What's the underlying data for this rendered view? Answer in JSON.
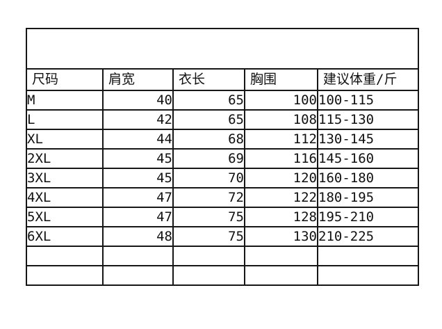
{
  "page": {
    "background_color": "#ffffff",
    "table_border_color": "#161616"
  },
  "size_chart": {
    "banner_text": "",
    "columns": [
      {
        "label": "尺码"
      },
      {
        "label": "肩宽"
      },
      {
        "label": "衣长"
      },
      {
        "label": "胸围"
      },
      {
        "label": "建议体重/斤"
      }
    ],
    "rows": [
      {
        "size": "M",
        "shoulder": "40",
        "length": "65",
        "chest": "100",
        "weight": "100-115"
      },
      {
        "size": "L",
        "shoulder": "42",
        "length": "65",
        "chest": "108",
        "weight": "115-130"
      },
      {
        "size": "XL",
        "shoulder": "44",
        "length": "68",
        "chest": "112",
        "weight": "130-145"
      },
      {
        "size": "2XL",
        "shoulder": "45",
        "length": "69",
        "chest": "116",
        "weight": "145-160"
      },
      {
        "size": "3XL",
        "shoulder": "45",
        "length": "70",
        "chest": "120",
        "weight": "160-180"
      },
      {
        "size": "4XL",
        "shoulder": "47",
        "length": "72",
        "chest": "122",
        "weight": "180-195"
      },
      {
        "size": "5XL",
        "shoulder": "47",
        "length": "75",
        "chest": "128",
        "weight": "195-210"
      },
      {
        "size": "6XL",
        "shoulder": "48",
        "length": "75",
        "chest": "130",
        "weight": "210-225"
      },
      {
        "size": "",
        "shoulder": "",
        "length": "",
        "chest": "",
        "weight": ""
      },
      {
        "size": "",
        "shoulder": "",
        "length": "",
        "chest": "",
        "weight": ""
      }
    ]
  },
  "chart_data": {
    "type": "table",
    "title": "",
    "columns": [
      "尺码",
      "肩宽",
      "衣长",
      "胸围",
      "建议体重/斤"
    ],
    "rows": [
      [
        "M",
        40,
        65,
        100,
        "100-115"
      ],
      [
        "L",
        42,
        65,
        108,
        "115-130"
      ],
      [
        "XL",
        44,
        68,
        112,
        "130-145"
      ],
      [
        "2XL",
        45,
        69,
        116,
        "145-160"
      ],
      [
        "3XL",
        45,
        70,
        120,
        "160-180"
      ],
      [
        "4XL",
        47,
        72,
        122,
        "180-195"
      ],
      [
        "5XL",
        47,
        75,
        128,
        "195-210"
      ],
      [
        "6XL",
        48,
        75,
        130,
        "210-225"
      ],
      [
        "",
        "",
        "",
        "",
        ""
      ],
      [
        "",
        "",
        "",
        "",
        ""
      ]
    ]
  }
}
